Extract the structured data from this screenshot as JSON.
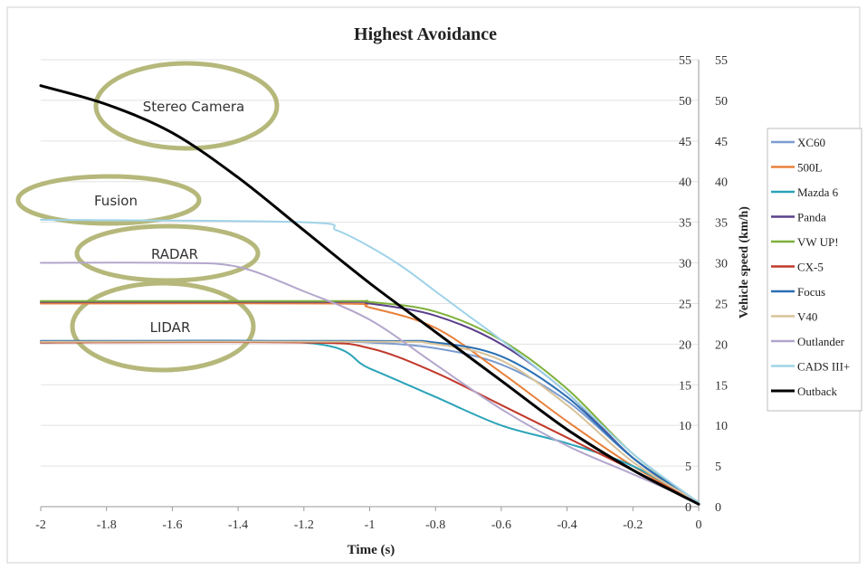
{
  "chart_data": {
    "type": "line",
    "title": "Highest Avoidance",
    "xlabel": "Time (s)",
    "ylabel": "Vehicle speed (km/h)",
    "xlim": [
      -2,
      0
    ],
    "ylim": [
      0,
      55
    ],
    "x_ticks": [
      "-2",
      "-1.8",
      "-1.6",
      "-1.4",
      "-1.2",
      "-1",
      "-0.8",
      "-0.6",
      "-0.4",
      "-0.2",
      "0"
    ],
    "y_ticks": [
      "0",
      "5",
      "10",
      "15",
      "20",
      "25",
      "30",
      "35",
      "40",
      "45",
      "50",
      "55"
    ],
    "grid": "horizontal",
    "legend_position": "right",
    "series": [
      {
        "name": "XC60",
        "color": "#7b9bd1",
        "x": [
          -2,
          -1.2,
          -1.0,
          -0.8,
          -0.6,
          -0.4,
          -0.2,
          0
        ],
        "y": [
          20.3,
          20.3,
          20.2,
          19.5,
          17.5,
          13.0,
          6.0,
          0.5
        ]
      },
      {
        "name": "500L",
        "color": "#e8803a",
        "x": [
          -2,
          -1.1,
          -1.0,
          -0.8,
          -0.6,
          -0.4,
          -0.2,
          0
        ],
        "y": [
          25.0,
          25.0,
          24.5,
          22.0,
          16.5,
          10.5,
          5.0,
          0.5
        ]
      },
      {
        "name": "Mazda 6",
        "color": "#2aa3b8",
        "x": [
          -2,
          -1.2,
          -1.0,
          -0.8,
          -0.6,
          -0.4,
          -0.2,
          0
        ],
        "y": [
          20.2,
          20.2,
          17.0,
          13.5,
          10.0,
          7.8,
          5.0,
          0.5
        ]
      },
      {
        "name": "Panda",
        "color": "#5b3f8c",
        "x": [
          -2,
          -1.1,
          -1.0,
          -0.8,
          -0.6,
          -0.4,
          -0.2,
          0
        ],
        "y": [
          25.2,
          25.2,
          25.0,
          23.5,
          20.0,
          14.0,
          6.0,
          0.5
        ]
      },
      {
        "name": "VW UP!",
        "color": "#7fb03a",
        "x": [
          -2,
          -1.1,
          -1.0,
          -0.8,
          -0.6,
          -0.4,
          -0.2,
          0
        ],
        "y": [
          25.3,
          25.3,
          25.2,
          24.0,
          20.5,
          14.5,
          6.5,
          0.5
        ]
      },
      {
        "name": "CX-5",
        "color": "#c0392b",
        "x": [
          -2,
          -1.2,
          -1.0,
          -0.8,
          -0.6,
          -0.4,
          -0.2,
          0
        ],
        "y": [
          20.2,
          20.2,
          19.5,
          16.5,
          12.5,
          8.5,
          4.5,
          0.5
        ]
      },
      {
        "name": "Focus",
        "color": "#2a6fb3",
        "x": [
          -2,
          -1.0,
          -0.8,
          -0.6,
          -0.4,
          -0.2,
          0
        ],
        "y": [
          20.4,
          20.4,
          20.2,
          18.5,
          13.5,
          6.0,
          0.5
        ]
      },
      {
        "name": "V40",
        "color": "#d8c39a",
        "x": [
          -2,
          -1.0,
          -0.8,
          -0.6,
          -0.4,
          -0.2,
          0
        ],
        "y": [
          20.3,
          20.3,
          20.0,
          18.0,
          12.5,
          5.5,
          0.5
        ]
      },
      {
        "name": "Outlander",
        "color": "#b3a6cc",
        "x": [
          -2,
          -1.6,
          -1.4,
          -1.2,
          -1.0,
          -0.8,
          -0.6,
          -0.4,
          -0.2,
          0
        ],
        "y": [
          30.0,
          30.0,
          29.5,
          26.5,
          23.0,
          17.5,
          12.0,
          7.5,
          4.0,
          0.5
        ]
      },
      {
        "name": "CADS III+",
        "color": "#9fd3e8",
        "x": [
          -2,
          -1.2,
          -1.1,
          -1.0,
          -0.9,
          -0.8,
          -0.7,
          -0.6,
          -0.4,
          -0.2,
          0
        ],
        "y": [
          35.3,
          35.0,
          34.0,
          32.0,
          29.5,
          26.5,
          23.5,
          20.5,
          14.0,
          6.5,
          0.5
        ]
      },
      {
        "name": "Outback",
        "color": "#000000",
        "x": [
          -2,
          -1.8,
          -1.6,
          -1.4,
          -1.2,
          -1.0,
          -0.8,
          -0.6,
          -0.4,
          -0.2,
          0
        ],
        "y": [
          51.8,
          49.5,
          46.0,
          40.5,
          34.0,
          27.5,
          21.5,
          15.5,
          9.5,
          4.5,
          0.3
        ]
      }
    ],
    "annotations": [
      "Stereo Camera",
      "Fusion",
      "RADAR",
      "LIDAR"
    ],
    "annotation_color": "#b5b87a"
  }
}
